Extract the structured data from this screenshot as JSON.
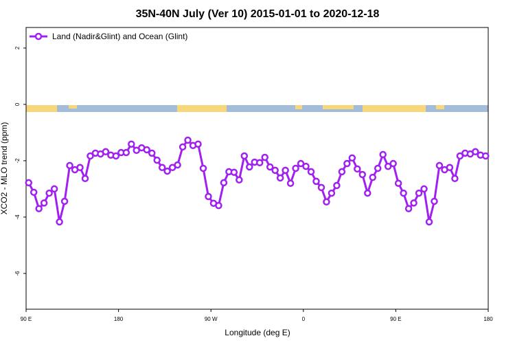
{
  "chart_data": {
    "type": "line",
    "title": "35N-40N July (Ver 10)   2015-01-01 to 2020-12-18",
    "xlabel": "Longitude (deg E)",
    "ylabel": "XCO2 - MLO trend (ppm)",
    "x": [
      92.5,
      97.5,
      102.5,
      107.5,
      112.5,
      117.5,
      122.5,
      127.5,
      132.5,
      137.5,
      142.5,
      147.5,
      152.5,
      157.5,
      162.5,
      167.5,
      172.5,
      177.5,
      182.5,
      187.5,
      192.5,
      197.5,
      202.5,
      207.5,
      212.5,
      217.5,
      222.5,
      227.5,
      232.5,
      237.5,
      242.5,
      247.5,
      252.5,
      257.5,
      262.5,
      267.5,
      272.5,
      277.5,
      282.5,
      287.5,
      292.5,
      297.5,
      302.5,
      307.5,
      312.5,
      317.5,
      322.5,
      327.5,
      332.5,
      337.5,
      342.5,
      347.5,
      352.5,
      357.5,
      362.5,
      367.5,
      372.5,
      377.5,
      382.5,
      387.5,
      392.5,
      397.5,
      402.5,
      407.5,
      412.5,
      417.5,
      422.5,
      427.5,
      432.5,
      437.5,
      442.5,
      447.5,
      452.5,
      457.5,
      462.5,
      467.5,
      472.5,
      477.5,
      482.5,
      487.5,
      492.5,
      497.5,
      502.5,
      507.5,
      512.5,
      517.5,
      522.5,
      527.5,
      532.5,
      537.5
    ],
    "series": [
      {
        "name": "Land (Nadir&Glint) and Ocean (Glint)",
        "color": "#a020f0",
        "values": [
          -2.78,
          -3.12,
          -3.7,
          -3.5,
          -3.15,
          -3.0,
          -4.17,
          -3.44,
          -2.17,
          -2.32,
          -2.24,
          -2.63,
          -1.83,
          -1.73,
          -1.76,
          -1.68,
          -1.8,
          -1.83,
          -1.71,
          -1.71,
          -1.41,
          -1.63,
          -1.54,
          -1.61,
          -1.73,
          -1.98,
          -2.24,
          -2.37,
          -2.24,
          -2.15,
          -1.51,
          -1.27,
          -1.46,
          -1.41,
          -2.27,
          -3.27,
          -3.51,
          -3.59,
          -2.78,
          -2.39,
          -2.41,
          -2.68,
          -1.83,
          -2.22,
          -2.05,
          -2.07,
          -1.88,
          -2.22,
          -2.34,
          -2.61,
          -2.34,
          -2.8,
          -2.27,
          -2.1,
          -2.2,
          -2.39,
          -2.73,
          -2.95,
          -3.46,
          -3.15,
          -2.88,
          -2.39,
          -2.1,
          -1.9,
          -2.29,
          -2.49,
          -3.15,
          -2.59,
          -2.27,
          -1.78,
          -2.2,
          -2.1,
          -2.8,
          -3.15,
          -3.7,
          -3.5,
          -3.15,
          -3.0,
          -4.17,
          -3.44,
          -2.17,
          -2.32,
          -2.24,
          -2.63,
          -1.83,
          -1.73,
          -1.76,
          -1.68,
          -1.8,
          -1.83
        ]
      }
    ],
    "xlim": [
      90,
      540
    ],
    "xticks": [
      {
        "value": 90,
        "label": "90 E"
      },
      180,
      {
        "value": 270,
        "label": "90 W"
      },
      {
        "value": 360,
        "label": "0"
      },
      {
        "value": 450,
        "label": "90 E"
      },
      {
        "value": 540,
        "label": "180"
      }
    ],
    "ylim": [
      -7.27,
      2.73
    ],
    "yticks": [
      -6,
      -4,
      -2,
      0,
      2
    ],
    "legend": "top-left"
  }
}
